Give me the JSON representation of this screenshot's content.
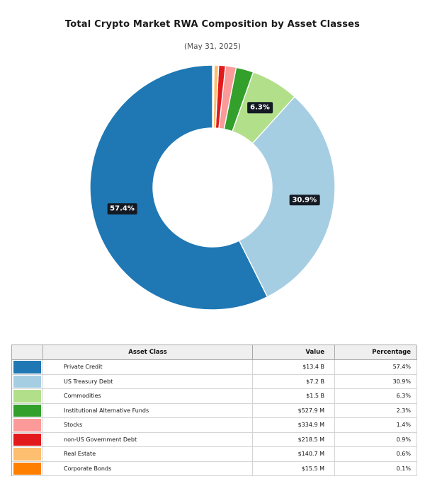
{
  "chart_data": {
    "type": "pie",
    "variant": "donut",
    "title": "Total Crypto Market RWA Composition by Asset Classes",
    "subtitle": "(May 31, 2025)",
    "start_angle_deg": 90,
    "direction": "counterclockwise",
    "outer_radius_px": 173,
    "inner_radius_px": 84,
    "wedge_edge_color": "#ffffff",
    "pct_label_min": 3,
    "pct_label_radius_px": 131,
    "pct_label_box": {
      "bg": "#141a24",
      "fg": "#ffffff"
    },
    "slices": [
      {
        "label": "Private Credit",
        "value_text": "$13.4 B",
        "pct": 57.4,
        "color": "#1f78b4"
      },
      {
        "label": "US Treasury Debt",
        "value_text": "$7.2 B",
        "pct": 30.9,
        "color": "#a6cee3"
      },
      {
        "label": "Commodities",
        "value_text": "$1.5 B",
        "pct": 6.3,
        "color": "#b2df8a"
      },
      {
        "label": "Institutional Alternative Funds",
        "value_text": "$527.9 M",
        "pct": 2.3,
        "color": "#33a02c"
      },
      {
        "label": "Stocks",
        "value_text": "$334.9 M",
        "pct": 1.4,
        "color": "#fb9a99"
      },
      {
        "label": "non-US Government Debt",
        "value_text": "$218.5 M",
        "pct": 0.9,
        "color": "#e31a1c"
      },
      {
        "label": "Real Estate",
        "value_text": "$140.7 M",
        "pct": 0.6,
        "color": "#fdbf6f"
      },
      {
        "label": "Corporate Bonds",
        "value_text": "$15.5 M",
        "pct": 0.1,
        "color": "#ff7f00"
      }
    ]
  },
  "table": {
    "headers": [
      "",
      "Asset Class",
      "Value",
      "Percentage"
    ]
  }
}
